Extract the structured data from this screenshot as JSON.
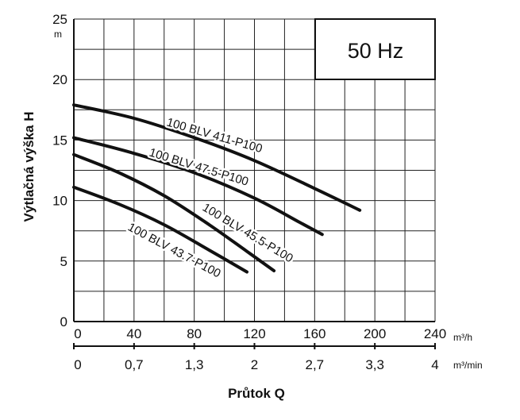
{
  "chart_data": {
    "type": "line",
    "frequency_label": "50 Hz",
    "ylabel": "Výtlačná výška H",
    "yunit": "m",
    "xlabel": "Průtok Q",
    "xunit_primary": "m³/h",
    "xunit_secondary": "m³/min",
    "xlim": [
      0,
      240
    ],
    "ylim": [
      0,
      25
    ],
    "grid": true,
    "x_ticks": [
      "0",
      "40",
      "80",
      "120",
      "160",
      "200",
      "240"
    ],
    "x_ticks_secondary": [
      "0",
      "0,7",
      "1,3",
      "2",
      "2,7",
      "3,3",
      "4"
    ],
    "y_ticks": [
      "0",
      "5",
      "10",
      "15",
      "20",
      "25"
    ],
    "series": [
      {
        "name": "100 BLV 411-P100",
        "x": [
          0,
          40,
          80,
          120,
          160,
          190
        ],
        "y": [
          17.9,
          16.8,
          15.2,
          13.3,
          11.0,
          9.2
        ]
      },
      {
        "name": "100 BLV 47.5-P100",
        "x": [
          0,
          40,
          80,
          120,
          150,
          165
        ],
        "y": [
          15.2,
          13.9,
          12.3,
          10.2,
          8.2,
          7.2
        ]
      },
      {
        "name": "100 BLV 45.5-P100",
        "x": [
          0,
          30,
          60,
          90,
          115,
          133
        ],
        "y": [
          13.8,
          12.3,
          10.4,
          8.0,
          5.8,
          4.2
        ]
      },
      {
        "name": "100 BLV 43.7-P100",
        "x": [
          0,
          30,
          60,
          90,
          115
        ],
        "y": [
          11.1,
          9.7,
          8.0,
          5.9,
          4.1
        ]
      }
    ]
  }
}
